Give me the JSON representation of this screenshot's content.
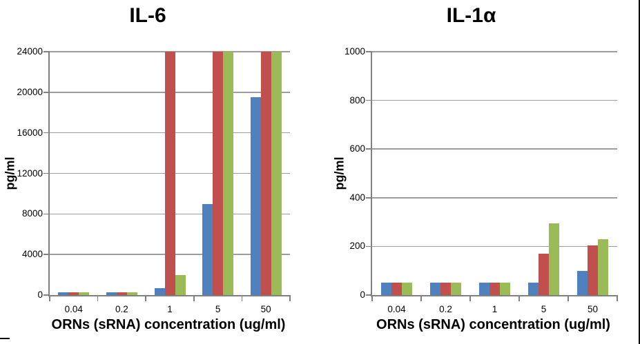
{
  "window": {
    "background": "#ffffff",
    "right_border_color": "#010101"
  },
  "style": {
    "gridline_color": "#9C9C9C",
    "axis_color": "#808080",
    "text_color": "#000000"
  },
  "chart_data": [
    {
      "type": "bar",
      "title": "IL-6",
      "xlabel": "ORNs (sRNA) concentration (ug/ml)",
      "ylabel": "pg/ml",
      "categories": [
        "0.04",
        "0.2",
        "1",
        "5",
        "50"
      ],
      "series": [
        {
          "name": "blue",
          "color": "#4F81BD",
          "values": [
            250,
            250,
            650,
            9000,
            19500
          ]
        },
        {
          "name": "red",
          "color": "#C0504D",
          "values": [
            250,
            250,
            24000,
            24000,
            24000
          ]
        },
        {
          "name": "green",
          "color": "#9BBB59",
          "values": [
            250,
            250,
            2000,
            24000,
            24000
          ]
        }
      ],
      "ylim": [
        0,
        24000
      ],
      "yticks": [
        0,
        4000,
        8000,
        12000,
        16000,
        20000,
        24000
      ],
      "grid": true,
      "legend": "none"
    },
    {
      "type": "bar",
      "title": "IL-1α",
      "xlabel": "ORNs (sRNA) concentration (ug/ml)",
      "ylabel": "pg/ml",
      "categories": [
        "0.04",
        "0.2",
        "1",
        "5",
        "50"
      ],
      "series": [
        {
          "name": "blue",
          "color": "#4F81BD",
          "values": [
            50,
            50,
            50,
            50,
            100
          ]
        },
        {
          "name": "red",
          "color": "#C0504D",
          "values": [
            50,
            50,
            50,
            170,
            205
          ]
        },
        {
          "name": "green",
          "color": "#9BBB59",
          "values": [
            50,
            50,
            50,
            295,
            230
          ]
        }
      ],
      "ylim": [
        0,
        1000
      ],
      "yticks": [
        0,
        200,
        400,
        600,
        800,
        1000
      ],
      "grid": true,
      "legend": "none"
    }
  ]
}
